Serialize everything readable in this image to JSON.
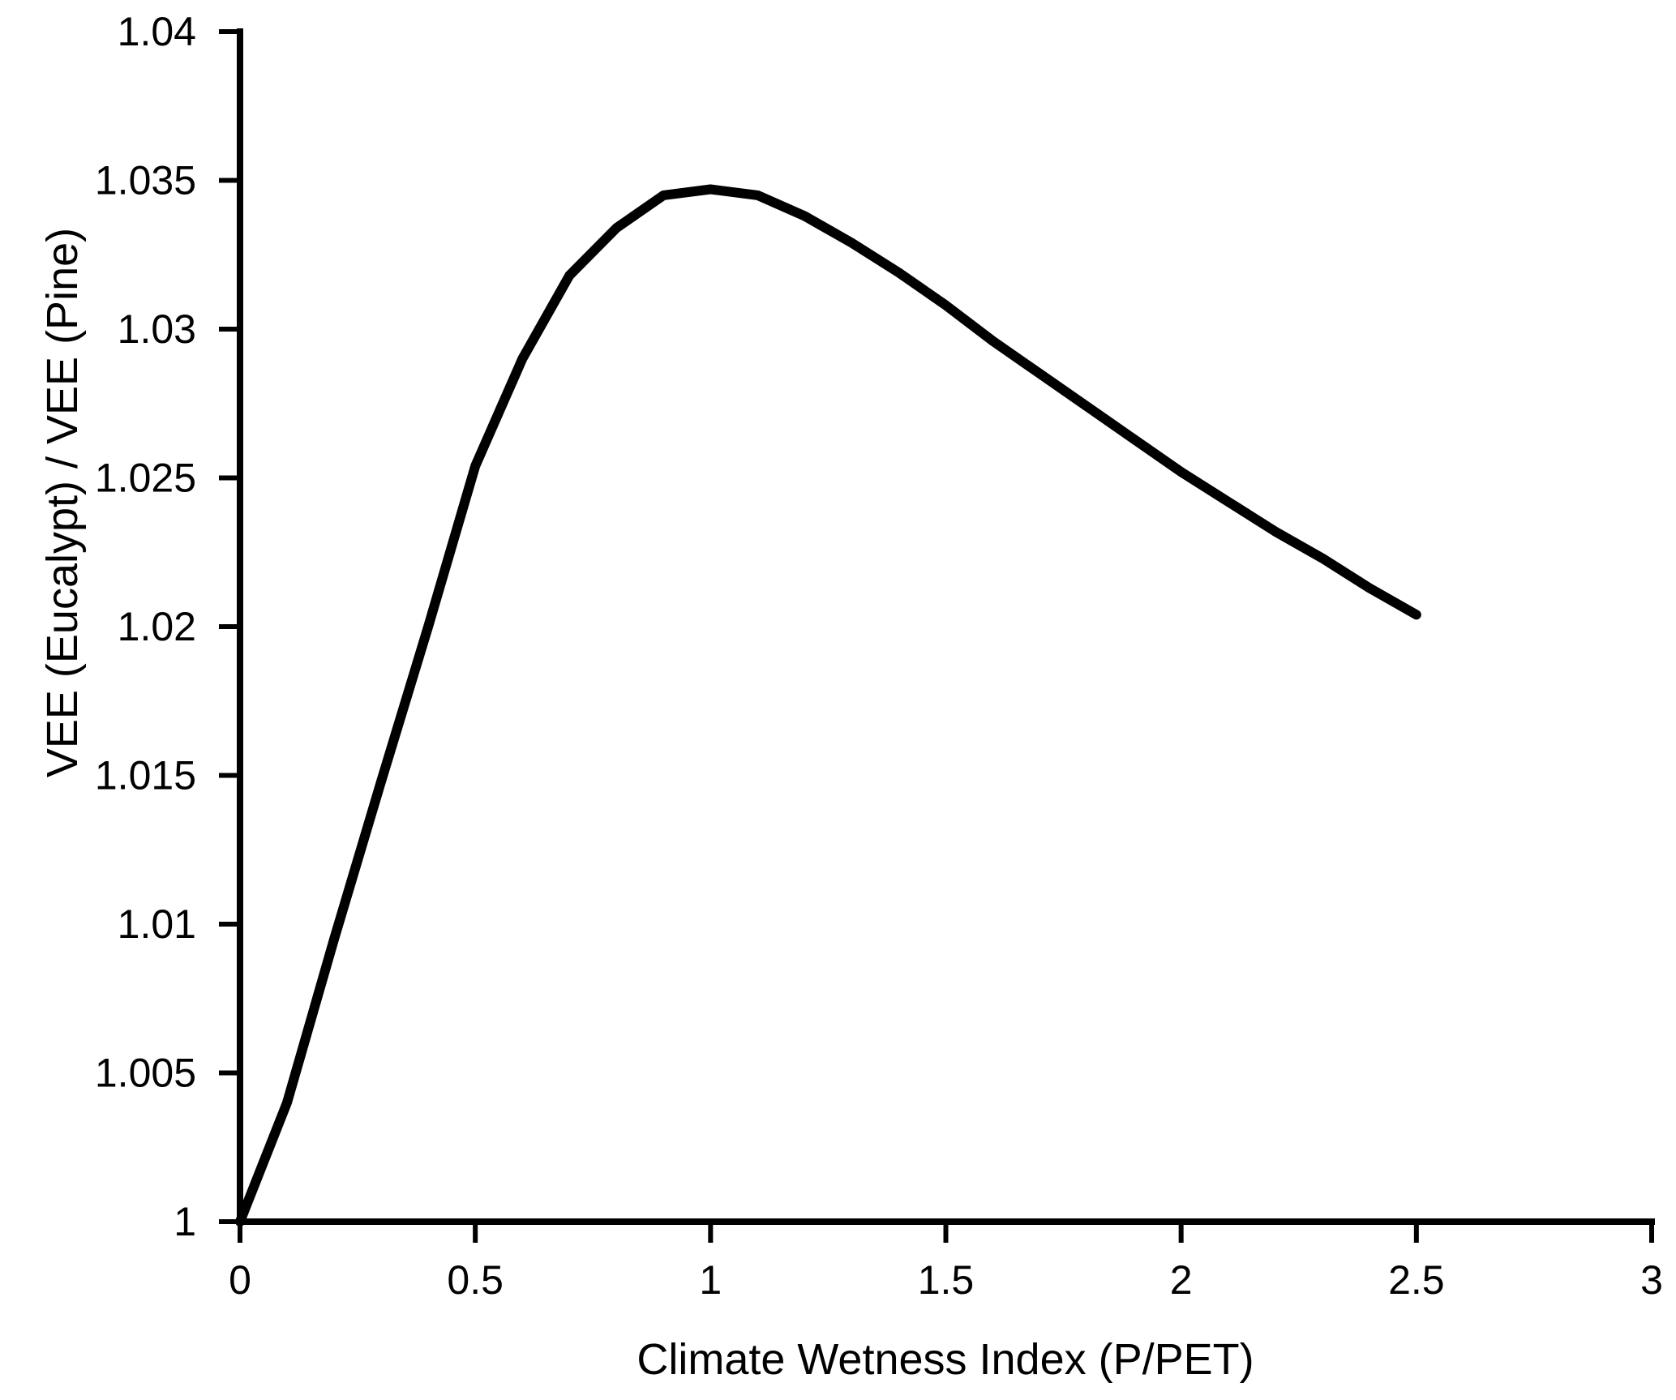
{
  "figure": {
    "background_color": "#ffffff",
    "line_color": "#000000",
    "axis_color": "#000000",
    "text_color": "#000000"
  },
  "chart_data": {
    "type": "line",
    "title": "",
    "xlabel": "Climate Wetness Index (P/PET)",
    "ylabel": "VEE (Eucalypt) / VEE (Pine)",
    "xlim": [
      0,
      3
    ],
    "ylim": [
      1,
      1.04
    ],
    "x_ticks": [
      0,
      0.5,
      1,
      1.5,
      2,
      2.5,
      3
    ],
    "x_tick_labels": [
      "0",
      "0.5",
      "1",
      "1.5",
      "2",
      "2.5",
      "3"
    ],
    "y_ticks": [
      1,
      1.005,
      1.01,
      1.015,
      1.02,
      1.025,
      1.03,
      1.035,
      1.04
    ],
    "y_tick_labels": [
      "1",
      "1.005",
      "1.01",
      "1.015",
      "1.02",
      "1.025",
      "1.03",
      "1.035",
      "1.04"
    ],
    "grid": false,
    "legend": null,
    "series": [
      {
        "name": "VEE (Eucalypt) / VEE (Pine) ratio",
        "color": "#000000",
        "x": [
          0.0,
          0.1,
          0.2,
          0.3,
          0.4,
          0.5,
          0.6,
          0.7,
          0.8,
          0.9,
          1.0,
          1.1,
          1.2,
          1.3,
          1.4,
          1.5,
          1.6,
          1.7,
          1.8,
          1.9,
          2.0,
          2.1,
          2.2,
          2.3,
          2.4,
          2.5
        ],
        "y": [
          1.0,
          1.004,
          1.0095,
          1.0148,
          1.02,
          1.0254,
          1.029,
          1.0318,
          1.0334,
          1.0345,
          1.0347,
          1.0345,
          1.0338,
          1.0329,
          1.0319,
          1.0308,
          1.0296,
          1.0285,
          1.0274,
          1.0263,
          1.0252,
          1.0242,
          1.0232,
          1.0223,
          1.0213,
          1.0204
        ]
      }
    ],
    "peak_point": {
      "x": 1.0,
      "y": 1.0347
    },
    "end_point": {
      "x": 2.5,
      "y": 1.0204
    }
  }
}
